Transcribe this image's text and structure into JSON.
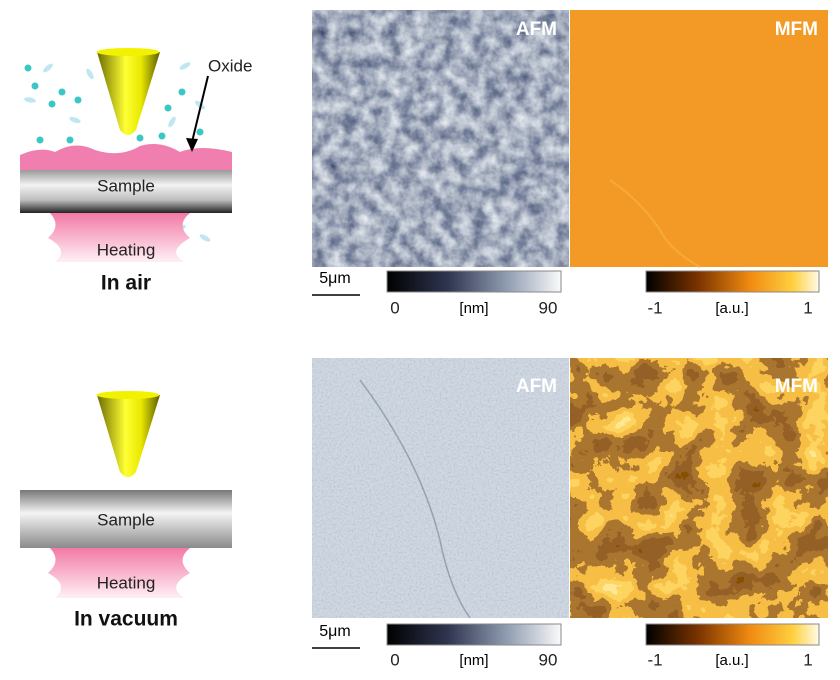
{
  "panels": [
    {
      "label": "In air",
      "sample": "Sample",
      "heating": "Heating",
      "oxide": "Oxide",
      "afm": {
        "title": "AFM",
        "scalebar": "5μm",
        "colorbar": {
          "min": "0",
          "unit": "[nm]",
          "max": "90"
        }
      },
      "mfm": {
        "title": "MFM",
        "colorbar": {
          "min": "-1",
          "unit": "[a.u.]",
          "max": "1"
        }
      }
    },
    {
      "label": "In vacuum",
      "sample": "Sample",
      "heating": "Heating",
      "afm": {
        "title": "AFM",
        "scalebar": "5μm",
        "colorbar": {
          "min": "0",
          "unit": "[nm]",
          "max": "90"
        }
      },
      "mfm": {
        "title": "MFM",
        "colorbar": {
          "min": "-1",
          "unit": "[a.u.]",
          "max": "1"
        }
      }
    }
  ]
}
